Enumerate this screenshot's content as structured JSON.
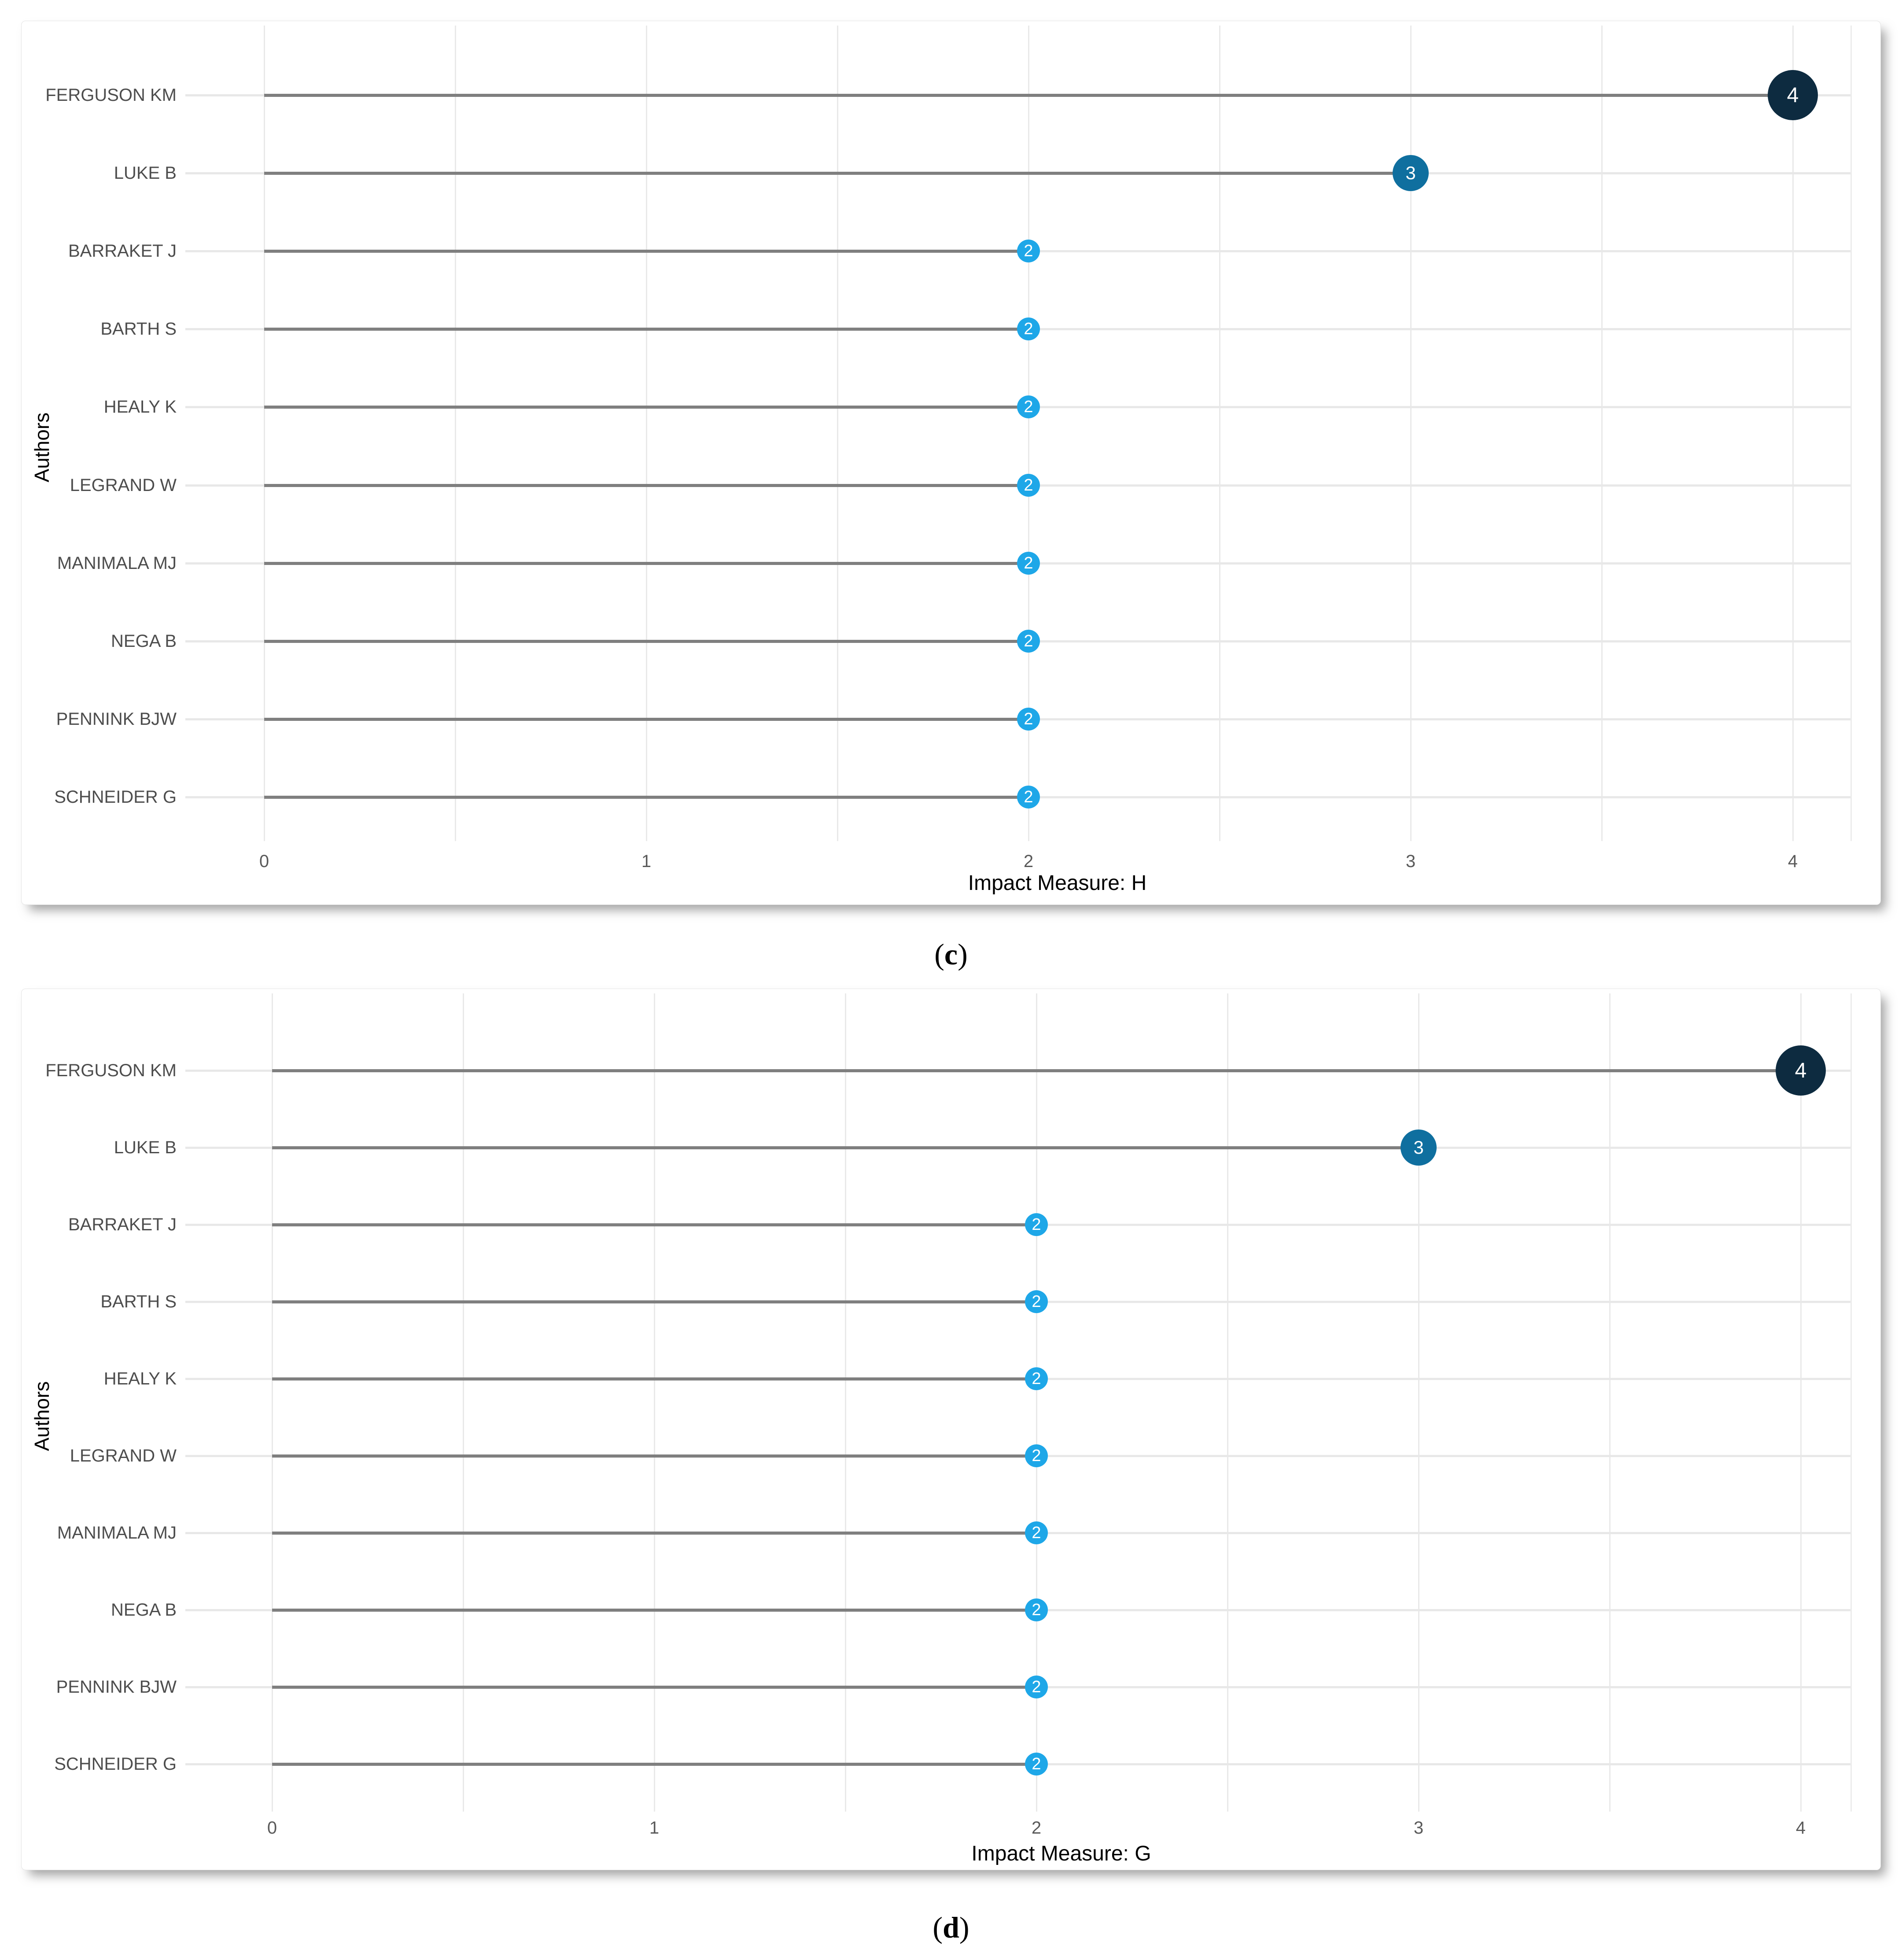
{
  "page": {
    "background": "#ffffff"
  },
  "colors": {
    "point_value_4": "#0d2b40",
    "point_value_3": "#0f6f9f",
    "point_value_2": "#1ea7e8",
    "point_number_text": "#ffffff",
    "stem": "#7f7f7f",
    "row_line": "#e8e8e8",
    "gridline": "#e9e9e9",
    "author_label_text": "#4d4d4d",
    "tick_label_text": "#5a5a5a",
    "axis_title_text": "#000000",
    "panel_border": "#e4e4e4"
  },
  "chart_data": [
    {
      "type": "lollipop",
      "title": "",
      "xlabel": "Impact Measure: H",
      "ylabel": "Authors",
      "categories": [
        "FERGUSON KM",
        "LUKE B",
        "BARRAKET J",
        "BARTH S",
        "HEALY K",
        "LEGRAND W",
        "MANIMALA MJ",
        "NEGA B",
        "PENNINK BJW",
        "SCHNEIDER G"
      ],
      "values": [
        4,
        3,
        2,
        2,
        2,
        2,
        2,
        2,
        2,
        2
      ],
      "point_labels": [
        "4",
        "3",
        "2",
        "2",
        "2",
        "2",
        "2",
        "2",
        "2",
        "2"
      ],
      "xlim": [
        0,
        4.2
      ],
      "xticks": [
        "0",
        "1",
        "2",
        "3",
        "4"
      ],
      "grid": "vertical gridlines every 0.5 units",
      "legend": "none",
      "caption": {
        "open": "(",
        "letter": "c",
        "close": ")"
      }
    },
    {
      "type": "lollipop",
      "title": "",
      "xlabel": "Impact Measure: G",
      "ylabel": "Authors",
      "categories": [
        "FERGUSON KM",
        "LUKE B",
        "BARRAKET J",
        "BARTH S",
        "HEALY K",
        "LEGRAND W",
        "MANIMALA MJ",
        "NEGA B",
        "PENNINK BJW",
        "SCHNEIDER G"
      ],
      "values": [
        4,
        3,
        2,
        2,
        2,
        2,
        2,
        2,
        2,
        2
      ],
      "point_labels": [
        "4",
        "3",
        "2",
        "2",
        "2",
        "2",
        "2",
        "2",
        "2",
        "2"
      ],
      "xlim": [
        0,
        4.2
      ],
      "xticks": [
        "0",
        "1",
        "2",
        "3",
        "4"
      ],
      "grid": "vertical gridlines every 0.5 units",
      "legend": "none",
      "caption": {
        "open": "(",
        "letter": "d",
        "close": ")"
      }
    }
  ]
}
